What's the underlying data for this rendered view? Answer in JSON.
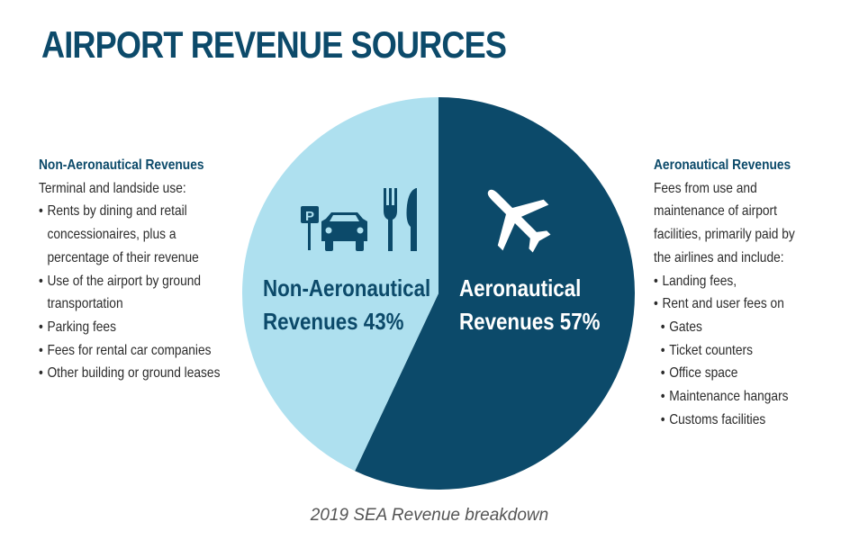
{
  "colors": {
    "title": "#0c4a6a",
    "heading": "#0c4a6a",
    "aero": "#0c4a6a",
    "non_aero": "#aee0ef",
    "icon_on_light": "#0c4a6a",
    "icon_on_dark": "#ffffff",
    "label_on_light": "#0c4a6a",
    "label_on_dark": "#ffffff"
  },
  "title": "AIRPORT REVENUE SOURCES",
  "left_panel": {
    "heading": "Non-Aeronautical Revenues",
    "intro": [
      "Terminal and landside use:"
    ],
    "bullets": [
      {
        "lines": [
          "Rents by dining and retail",
          "concessionaires, plus a",
          "percentage of their revenue"
        ]
      },
      {
        "lines": [
          "Use of the airport by ground",
          "transportation"
        ]
      },
      {
        "lines": [
          "Parking fees"
        ]
      },
      {
        "lines": [
          "Fees for rental car companies"
        ]
      },
      {
        "lines": [
          "Other building or ground leases"
        ]
      }
    ]
  },
  "right_panel": {
    "heading": "Aeronautical Revenues",
    "intro": [
      "Fees from use and",
      "maintenance of airport",
      "facilities, primarily paid by",
      "the airlines and include:"
    ],
    "bullets": [
      {
        "lines": [
          "Landing fees,"
        ]
      },
      {
        "lines": [
          "Rent and user fees on"
        ]
      },
      {
        "lines": [
          "Gates"
        ],
        "sub": true
      },
      {
        "lines": [
          "Ticket counters"
        ],
        "sub": true
      },
      {
        "lines": [
          "Office space"
        ],
        "sub": true
      },
      {
        "lines": [
          "Maintenance hangars"
        ],
        "sub": true
      },
      {
        "lines": [
          "Customs facilities"
        ],
        "sub": true
      }
    ]
  },
  "chart_data": {
    "type": "pie",
    "title": "AIRPORT REVENUE SOURCES",
    "caption": "2019 SEA Revenue breakdown",
    "slices": [
      {
        "name": "Aeronautical Revenues",
        "label_lines": [
          "Aeronautical",
          "Revenues 57%"
        ],
        "value": 57,
        "color": "#0c4a6a",
        "icons": [
          "airplane-icon"
        ]
      },
      {
        "name": "Non-Aeronautical Revenues",
        "label_lines": [
          "Non-Aeronautical",
          "Revenues 43%"
        ],
        "value": 43,
        "color": "#aee0ef",
        "icons": [
          "parking-sign-icon",
          "car-icon",
          "fork-icon",
          "knife-icon"
        ]
      }
    ],
    "start_angle": "12 o'clock",
    "direction": "clockwise"
  },
  "icon_legend": {
    "parking_letter": "P"
  }
}
